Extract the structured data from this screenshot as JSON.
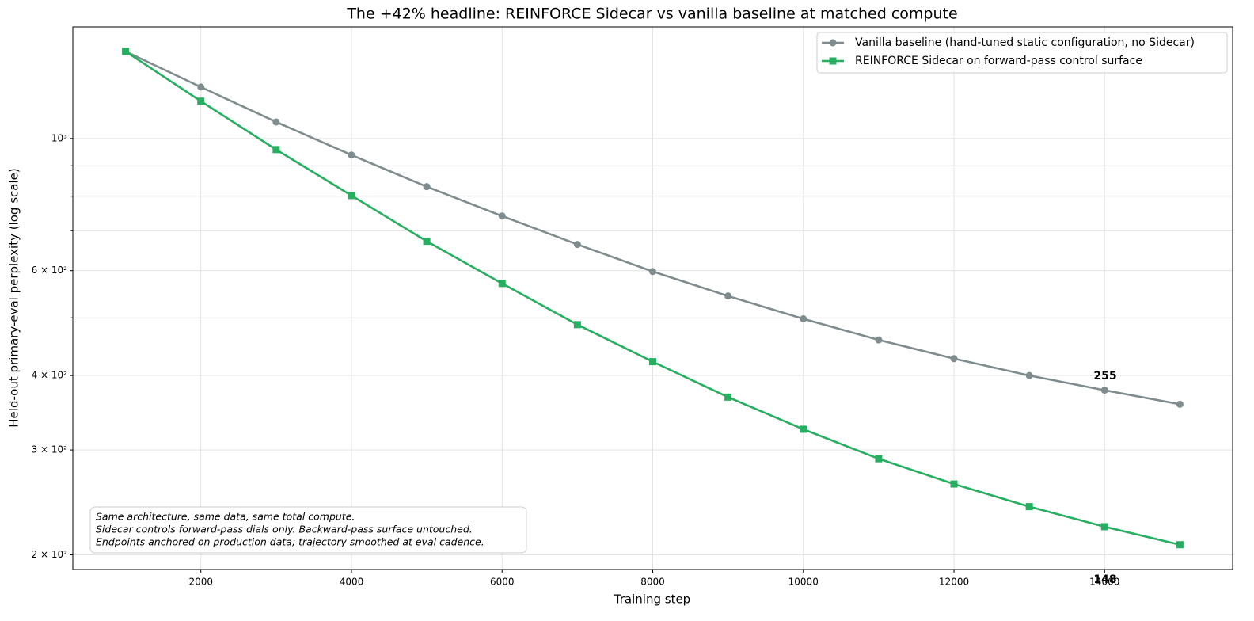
{
  "chart_data": {
    "type": "line",
    "title": "The +42% headline: REINFORCE Sidecar vs vanilla baseline at matched compute",
    "xlabel": "Training step",
    "ylabel": "Held-out primary-eval perplexity (log scale)",
    "x": [
      1000,
      2000,
      3000,
      4000,
      5000,
      6000,
      7000,
      8000,
      9000,
      10000,
      11000,
      12000,
      13000,
      14000,
      15000
    ],
    "series": [
      {
        "name": "Vanilla baseline (hand-tuned static configuration, no Sidecar)",
        "color": "#7f8c8d",
        "marker": "circle",
        "values": [
          1400,
          1220,
          1066,
          938,
          830,
          741,
          664,
          598,
          544,
          498,
          459,
          427,
          400,
          378,
          358
        ]
      },
      {
        "name": "REINFORCE Sidecar on forward-pass control surface",
        "color": "#27ae60",
        "marker": "square",
        "values": [
          1400,
          1155,
          958,
          802,
          672,
          571,
          487,
          422,
          368,
          325,
          290,
          263,
          241,
          223,
          208
        ]
      }
    ],
    "xlim": [
      300,
      15700
    ],
    "ylim": [
      189,
      1539
    ],
    "ylog": true,
    "xticks": [
      2000,
      4000,
      6000,
      8000,
      10000,
      12000,
      14000
    ],
    "yticks": [
      {
        "value": 200,
        "label": "2 × 10²"
      },
      {
        "value": 300,
        "label": "3 × 10²"
      },
      {
        "value": 400,
        "label": "4 × 10²"
      },
      {
        "value": 600,
        "label": "6 × 10²"
      },
      {
        "value": 1000,
        "label": "10³"
      }
    ],
    "yminorticks": [
      500,
      700,
      800,
      900
    ],
    "grid": true,
    "legend": "upper right",
    "annotations": [
      "255",
      "148"
    ],
    "note": [
      "Same architecture, same data, same total compute.",
      "Sidecar controls forward-pass dials only. Backward-pass surface untouched.",
      "Endpoints anchored on production data; trajectory smoothed at eval cadence."
    ]
  }
}
